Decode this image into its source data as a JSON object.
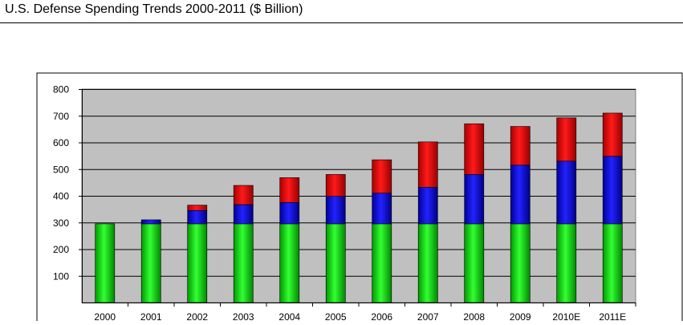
{
  "page": {
    "title": "U.S. Defense Spending Trends 2000-2011 ($ Billion)"
  },
  "colors": {
    "plot_background": "#c0c0c0",
    "gridline": "#000000",
    "series_colors": [
      "#00cc00",
      "#0000cc",
      "#dd0000"
    ]
  },
  "chart_data": {
    "type": "bar",
    "stacked": true,
    "categories": [
      "2000",
      "2001",
      "2002",
      "2003",
      "2004",
      "2005",
      "2006",
      "2007",
      "2008",
      "2009",
      "2010E",
      "2011E"
    ],
    "series": [
      {
        "color": "#00cc00",
        "values": [
          295,
          295,
          295,
          295,
          295,
          295,
          295,
          295,
          295,
          295,
          295,
          295
        ]
      },
      {
        "color": "#0000cc",
        "values": [
          0,
          15,
          50,
          72,
          80,
          103,
          115,
          137,
          185,
          220,
          235,
          253
        ]
      },
      {
        "color": "#dd0000",
        "values": [
          0,
          0,
          20,
          72,
          93,
          82,
          125,
          170,
          190,
          145,
          162,
          162
        ]
      }
    ],
    "ylim": [
      0,
      800
    ],
    "yticks": [
      100,
      200,
      300,
      400,
      500,
      600,
      700,
      800
    ],
    "ytick_labels": [
      "100",
      "200",
      "300",
      "400",
      "500",
      "600",
      "700",
      "800"
    ],
    "grid": true,
    "legend": "none"
  }
}
